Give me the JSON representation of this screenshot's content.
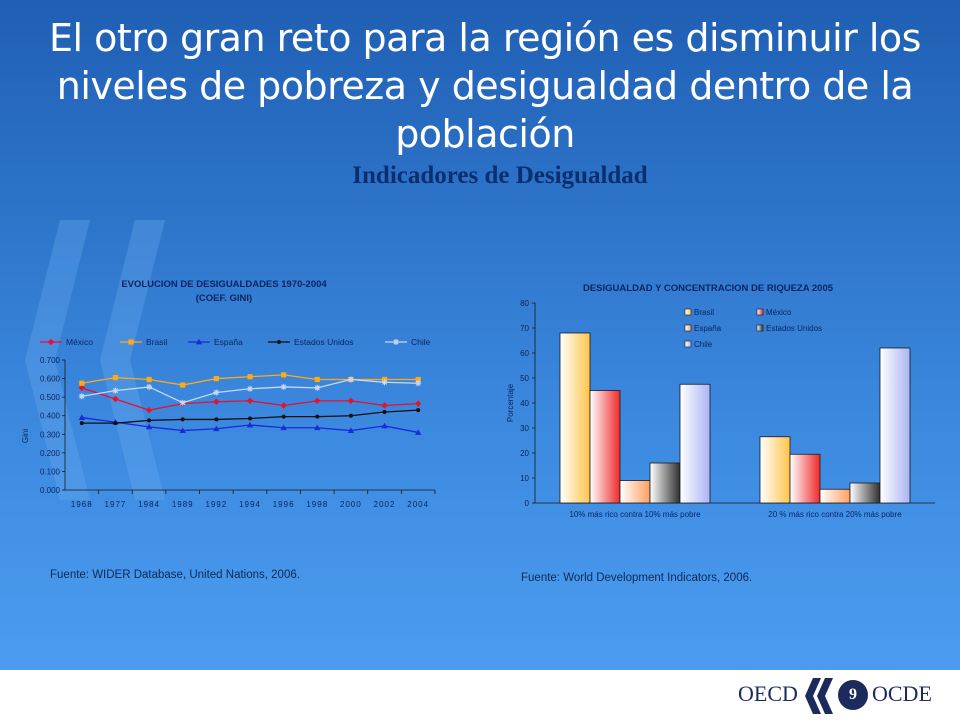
{
  "slide": {
    "title": "El otro gran reto para la región es disminuir los niveles de pobreza y desigualdad dentro de la población",
    "subtitle": "Indicadores de Desigualdad",
    "source_left": "Fuente: WIDER Database, United Nations, 2006.",
    "source_right": "Fuente: World Development Indicators, 2006.",
    "page_number": "9",
    "logo_left": "OECD",
    "logo_right": "OCDE"
  },
  "colors": {
    "background_top": "#1f5fb4",
    "background_bottom": "#4b9cf0",
    "title_text": "#ffffff",
    "subtitle_text": "#0b2f6e",
    "logo": "#1d2b5c"
  },
  "chart_data": [
    {
      "type": "line",
      "title": "EVOLUCION DE DESIGUALDADES 1970-2004",
      "subtitle": "(COEF. GINI)",
      "xlabel": "",
      "ylabel": "Gini",
      "categories": [
        "1968",
        "1977",
        "1984",
        "1989",
        "1992",
        "1994",
        "1996",
        "1998",
        "2000",
        "2002",
        "2004"
      ],
      "ylim": [
        0,
        0.7
      ],
      "yticks": [
        "0.000",
        "0.100",
        "0.200",
        "0.300",
        "0.400",
        "0.500",
        "0.600",
        "0.700"
      ],
      "legend_position": "top",
      "series": [
        {
          "name": "México",
          "color": "#e8102a",
          "marker": "diamond",
          "values": [
            0.55,
            0.49,
            0.43,
            0.465,
            0.475,
            0.48,
            0.455,
            0.48,
            0.48,
            0.455,
            0.465
          ]
        },
        {
          "name": "Brasil",
          "color": "#ffaa14",
          "marker": "square",
          "values": [
            0.575,
            0.605,
            0.595,
            0.565,
            0.6,
            0.61,
            0.62,
            0.595,
            0.595,
            0.595,
            0.595
          ]
        },
        {
          "name": "España",
          "color": "#1a2ad8",
          "marker": "triangle",
          "values": [
            0.39,
            0.365,
            0.34,
            0.32,
            0.33,
            0.35,
            0.335,
            0.335,
            0.32,
            0.345,
            0.31
          ]
        },
        {
          "name": "Estados Unidos",
          "color": "#101010",
          "marker": "dot",
          "values": [
            0.36,
            0.36,
            0.375,
            0.38,
            0.38,
            0.385,
            0.395,
            0.395,
            0.4,
            0.42,
            0.43
          ]
        },
        {
          "name": "Chile",
          "color": "#c8d8f0",
          "marker": "star",
          "values": [
            0.505,
            0.535,
            0.555,
            0.47,
            0.525,
            0.545,
            0.555,
            0.55,
            0.595,
            0.58,
            0.575
          ]
        }
      ]
    },
    {
      "type": "bar",
      "title": "DESIGUALDAD Y CONCENTRACION DE RIQUEZA 2005",
      "xlabel": "",
      "ylabel": "Porcentaje",
      "categories": [
        "10% más rico contra 10% más pobre",
        "20 % más rico contra 20% más pobre"
      ],
      "ylim": [
        0,
        80
      ],
      "yticks": [
        "0",
        "10",
        "20",
        "30",
        "40",
        "50",
        "60",
        "70",
        "80"
      ],
      "legend_position": "top-right",
      "series": [
        {
          "name": "Brasil",
          "color": "#ffc44a",
          "values": [
            68,
            26.5
          ]
        },
        {
          "name": "México",
          "color": "#ef2a2a",
          "values": [
            45,
            19.5
          ]
        },
        {
          "name": "España",
          "color": "#ffa060",
          "values": [
            9,
            5.5
          ]
        },
        {
          "name": "Estados Unidos",
          "color": "#303030",
          "values": [
            16,
            8
          ]
        },
        {
          "name": "Chile",
          "color": "#aab4f4",
          "values": [
            47.5,
            62
          ]
        }
      ]
    }
  ]
}
